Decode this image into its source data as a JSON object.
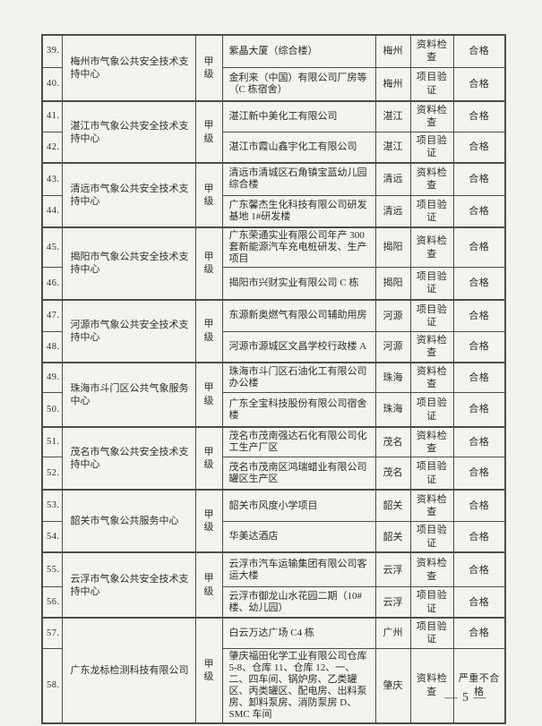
{
  "page": {
    "number_label": "— 5 —"
  },
  "colors": {
    "paper": "#f2f1ee",
    "ink": "#2d2c29",
    "table_border": "#4f4d49"
  },
  "table": {
    "groups": [
      {
        "org": "梅州市气象公共安全技术支持中心",
        "grade": "甲级",
        "rows": [
          {
            "num": "39.",
            "project": "紫晶大厦（综合楼）",
            "city": "梅州",
            "check": "资料检查",
            "result": "合格"
          },
          {
            "num": "40.",
            "project": "金利来（中国）有限公司厂房等（C 栋宿舍）",
            "city": "梅州",
            "check": "项目验证",
            "result": "合格"
          }
        ]
      },
      {
        "org": "湛江市气象公共安全技术支持中心",
        "grade": "甲级",
        "rows": [
          {
            "num": "41.",
            "project": "湛江新中美化工有限公司",
            "city": "湛江",
            "check": "资料检查",
            "result": "合格"
          },
          {
            "num": "42.",
            "project": "湛江市霞山鑫宇化工有限公司",
            "city": "湛江",
            "check": "项目验证",
            "result": "合格"
          }
        ]
      },
      {
        "org": "清远市气象公共安全技术支持中心",
        "grade": "甲级",
        "rows": [
          {
            "num": "43.",
            "project": "清远市清城区石角镇宝蓝幼儿园综合楼",
            "city": "清远",
            "check": "资料检查",
            "result": "合格"
          },
          {
            "num": "44.",
            "project": "广东馨杰生化科技有限公司研发基地 1#研发楼",
            "city": "清远",
            "check": "项目验证",
            "result": "合格"
          }
        ]
      },
      {
        "org": "揭阳市气象公共安全技术支持中心",
        "grade": "甲级",
        "rows": [
          {
            "num": "45.",
            "project": "广东荣通实业有限公司年产 300 套新能源汽车充电桩研发、生产项目",
            "city": "揭阳",
            "check": "资料检查",
            "result": "合格"
          },
          {
            "num": "46.",
            "project": "揭阳市兴财实业有限公司 C 栋",
            "city": "揭阳",
            "check": "项目验证",
            "result": "合格"
          }
        ]
      },
      {
        "org": "河源市气象公共安全技术支持中心",
        "grade": "甲级",
        "rows": [
          {
            "num": "47.",
            "project": "东源新奥燃气有限公司辅助用房",
            "city": "河源",
            "check": "项目验证",
            "result": "合格"
          },
          {
            "num": "48.",
            "project": "河源市源城区文昌学校行政楼 A",
            "city": "河源",
            "check": "资料检查",
            "result": "合格"
          }
        ]
      },
      {
        "org": "珠海市斗门区公共气象服务中心",
        "grade": "甲级",
        "rows": [
          {
            "num": "49.",
            "project": "珠海市斗门区石油化工有限公司办公楼",
            "city": "珠海",
            "check": "资料检查",
            "result": "合格"
          },
          {
            "num": "50.",
            "project": "广东全宝科技股份有限公司宿舍楼",
            "city": "珠海",
            "check": "项目验证",
            "result": "合格"
          }
        ]
      },
      {
        "org": "茂名市气象公共安全技术支持中心",
        "grade": "甲级",
        "rows": [
          {
            "num": "51.",
            "project": "茂名市茂南强达石化有限公司化工生产厂区",
            "city": "茂名",
            "check": "资料检查",
            "result": "合格"
          },
          {
            "num": "52.",
            "project": "茂名市茂南区鸿瑞蜡业有限公司罐区生产区",
            "city": "茂名",
            "check": "项目验证",
            "result": "合格"
          }
        ]
      },
      {
        "org": "韶关市气象公共服务中心",
        "grade": "甲级",
        "rows": [
          {
            "num": "53.",
            "project": "韶关市风度小学项目",
            "city": "韶关",
            "check": "资料检查",
            "result": "合格"
          },
          {
            "num": "54.",
            "project": "华美达酒店",
            "city": "韶关",
            "check": "项目验证",
            "result": "合格"
          }
        ]
      },
      {
        "org": "云浮市气象公共安全技术支持中心",
        "grade": "甲级",
        "rows": [
          {
            "num": "55.",
            "project": "云浮市汽车运输集团有限公司客运大楼",
            "city": "云浮",
            "check": "资料检查",
            "result": "合格"
          },
          {
            "num": "56.",
            "project": "云浮市御龙山水花园二期（10#楼、幼儿园）",
            "city": "云浮",
            "check": "项目验证",
            "result": "合格"
          }
        ]
      },
      {
        "org": "广东龙标检测科技有限公司",
        "grade": "甲级",
        "rows": [
          {
            "num": "57.",
            "project": "白云万达广场 C4 栋",
            "city": "广州",
            "check": "项目验证",
            "result": "合格"
          },
          {
            "num": "58.",
            "project": "肇庆福田化学工业有限公司仓库 5-8、仓库 11、仓库 12、一、二、四车间、锅炉房、乙类罐区、丙类罐区、配电房、出料泵房、卸料泵房、消防泵房 D、SMC 车间",
            "city": "肇庆",
            "check": "资料检查",
            "result": "严重不合格"
          }
        ]
      }
    ]
  }
}
